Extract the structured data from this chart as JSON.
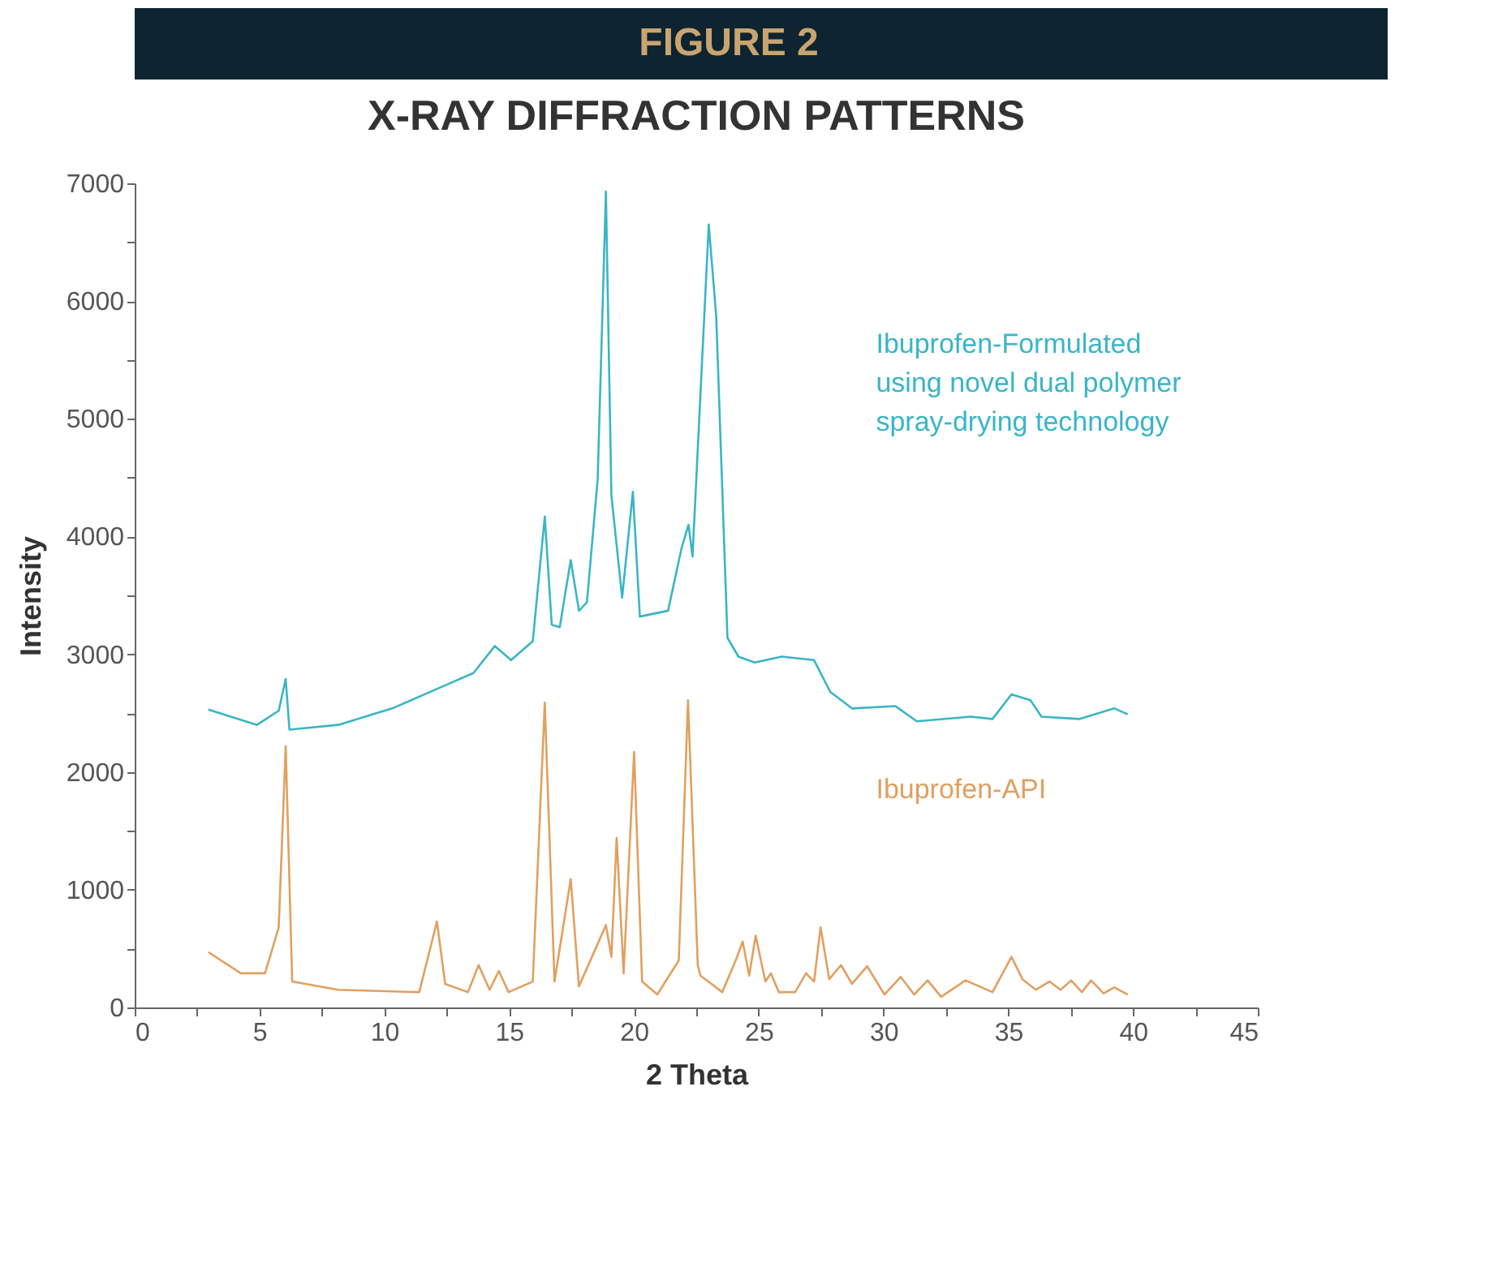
{
  "chart_data": {
    "type": "line",
    "title": "X-RAY DIFFRACTION PATTERNS",
    "annotations": [
      "FIGURE 2"
    ],
    "xlabel": "2 Theta",
    "ylabel": "Intensity",
    "xlim": [
      0,
      45
    ],
    "ylim": [
      0,
      7000
    ],
    "xticks": [
      0,
      {
        "value": 2.5,
        "label": null
      },
      5,
      {
        "value": 7.5,
        "label": null
      },
      10,
      {
        "value": 12.5,
        "label": null
      },
      15,
      {
        "value": 17.5,
        "label": null
      },
      20,
      {
        "value": 22.5,
        "label": null
      },
      25,
      {
        "value": 27.5,
        "label": null
      },
      30,
      {
        "value": 32.5,
        "label": null
      },
      35,
      {
        "value": 37.5,
        "label": null
      },
      40,
      {
        "value": 42.5,
        "label": null
      },
      45
    ],
    "yticks": [
      0,
      {
        "value": 500,
        "label": null
      },
      1000,
      {
        "value": 1500,
        "label": null
      },
      2000,
      {
        "value": 2500,
        "label": null
      },
      3000,
      {
        "value": 3500,
        "label": null
      },
      4000,
      {
        "value": 4500,
        "label": null
      },
      5000,
      {
        "value": 5500,
        "label": null
      },
      6000,
      {
        "value": 6500,
        "label": null
      },
      7000
    ],
    "grid": false,
    "legend": false,
    "marker": "none",
    "line_style": "solid",
    "series": [
      {
        "name": "Ibuprofen-Formulated using novel dual polymer spray-drying technology",
        "color": "#3ab5c6",
        "x": [
          2.95,
          4.9,
          5.77,
          6.05,
          6.2,
          8.15,
          10.32,
          12.05,
          13.57,
          14.43,
          15.08,
          15.95,
          16.43,
          16.71,
          17.03,
          17.47,
          17.8,
          18.12,
          18.55,
          18.88,
          19.1,
          19.53,
          19.96,
          20.24,
          21.37,
          21.91,
          22.19,
          22.35,
          23.0,
          23.3,
          23.75,
          24.19,
          24.84,
          25.92,
          27.22,
          27.87,
          28.74,
          30.47,
          31.34,
          33.5,
          34.37,
          35.13,
          35.89,
          36.33,
          37.84,
          39.25,
          39.79
        ],
        "values": [
          2530,
          2400,
          2520,
          2790,
          2360,
          2400,
          2540,
          2700,
          2840,
          3070,
          2950,
          3110,
          4170,
          3250,
          3230,
          3800,
          3370,
          3440,
          4490,
          6930,
          4350,
          3480,
          4380,
          3320,
          3370,
          3900,
          4100,
          3830,
          6650,
          5870,
          3140,
          2980,
          2930,
          2980,
          2950,
          2680,
          2540,
          2560,
          2430,
          2470,
          2450,
          2660,
          2610,
          2470,
          2450,
          2540,
          2490
        ]
      },
      {
        "name": "Ibuprofen-API",
        "color": "#e0a060",
        "x": [
          2.95,
          4.25,
          5.22,
          5.77,
          6.05,
          6.31,
          8.15,
          11.4,
          12.11,
          12.44,
          13.35,
          13.78,
          14.22,
          14.59,
          14.98,
          15.95,
          16.43,
          16.82,
          17.47,
          17.8,
          18.55,
          18.88,
          19.1,
          19.31,
          19.59,
          20.01,
          20.33,
          20.94,
          21.8,
          22.17,
          22.56,
          22.67,
          23.54,
          24.08,
          24.36,
          24.62,
          24.88,
          25.27,
          25.49,
          25.81,
          26.46,
          26.9,
          27.22,
          27.48,
          27.83,
          28.3,
          28.74,
          29.35,
          30.04,
          30.69,
          31.23,
          31.77,
          32.31,
          33.29,
          34.37,
          35.13,
          35.57,
          36.11,
          36.65,
          37.1,
          37.52,
          37.95,
          38.32,
          38.82,
          39.25,
          39.79
        ],
        "values": [
          470,
          290,
          290,
          680,
          2220,
          220,
          150,
          130,
          730,
          200,
          130,
          360,
          150,
          310,
          130,
          220,
          2590,
          220,
          1090,
          180,
          540,
          700,
          430,
          1440,
          290,
          2170,
          220,
          110,
          400,
          2610,
          360,
          270,
          130,
          400,
          560,
          270,
          610,
          220,
          290,
          130,
          130,
          290,
          220,
          680,
          240,
          360,
          200,
          350,
          110,
          260,
          110,
          230,
          90,
          230,
          130,
          430,
          240,
          150,
          220,
          150,
          230,
          130,
          230,
          120,
          170,
          110
        ]
      }
    ]
  }
}
